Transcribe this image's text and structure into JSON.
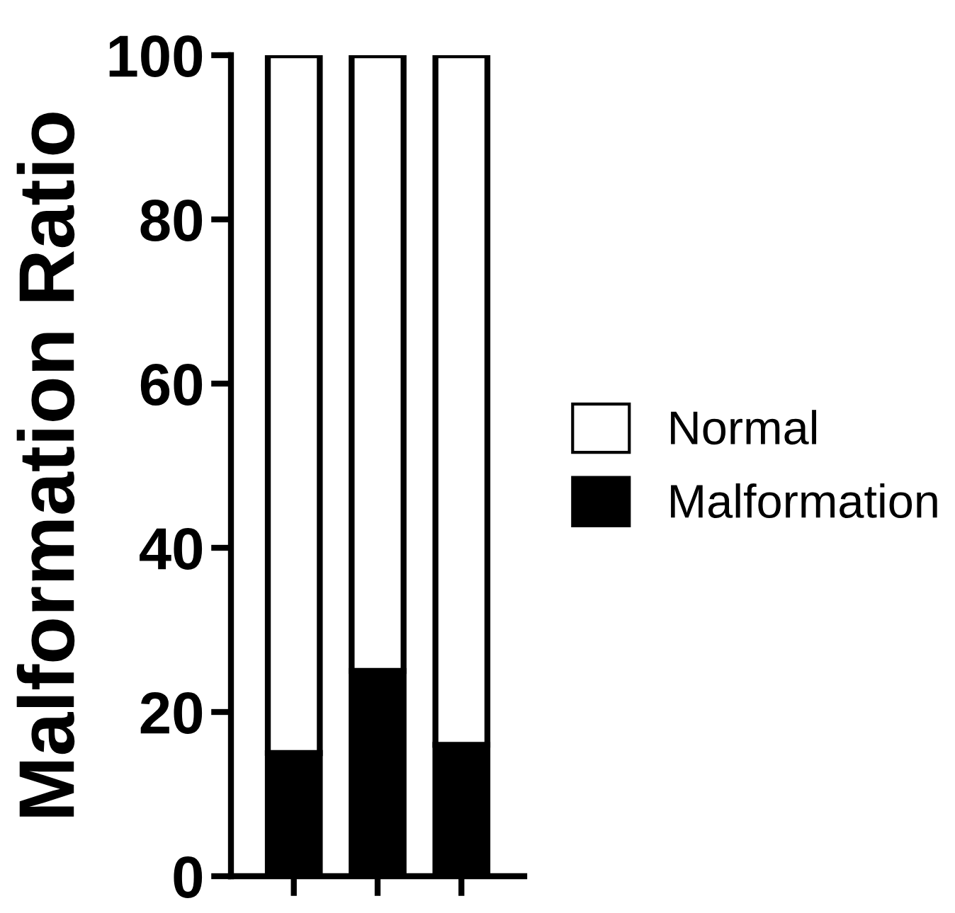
{
  "chart_data": {
    "type": "bar",
    "stacked": true,
    "ylabel": "Malformation Ratio",
    "categories": [
      null,
      null,
      null
    ],
    "series": [
      {
        "name": "Malformation",
        "color": "#000000",
        "values": [
          15,
          25,
          16
        ]
      },
      {
        "name": "Normal",
        "color": "#ffffff",
        "values": [
          85,
          75,
          84
        ]
      }
    ],
    "ylim": [
      0,
      100
    ],
    "yticks": [
      0,
      20,
      40,
      60,
      80,
      100
    ],
    "grid": false,
    "legend": "right",
    "tick_labels": "y"
  }
}
